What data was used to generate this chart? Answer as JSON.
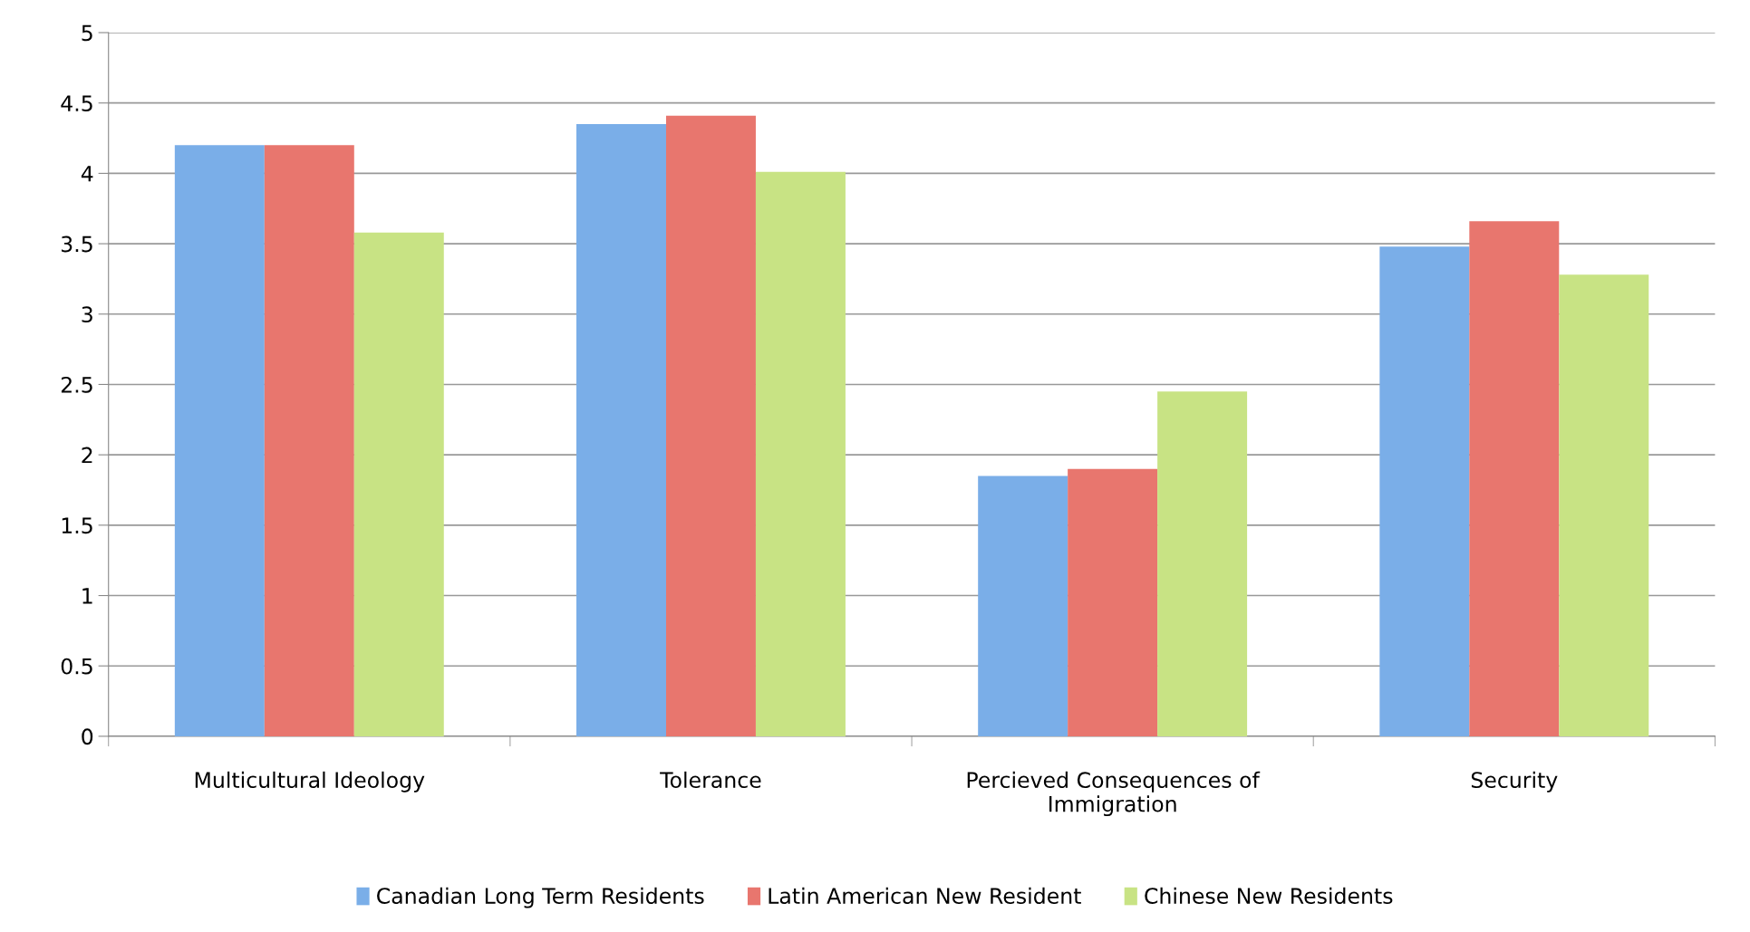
{
  "chart_data": {
    "type": "bar",
    "categories": [
      "Multicultural Ideology",
      "Tolerance",
      "Percieved Consequences of Immigration",
      "Security"
    ],
    "series": [
      {
        "name": "Canadian Long Term Residents",
        "color": "#7aaee8",
        "values": [
          4.2,
          4.35,
          1.85,
          3.48
        ]
      },
      {
        "name": "Latin American New Resident",
        "color": "#e8766e",
        "values": [
          4.2,
          4.41,
          1.9,
          3.66
        ]
      },
      {
        "name": "Chinese New Residents",
        "color": "#c8e384",
        "values": [
          3.58,
          4.01,
          2.45,
          3.28
        ]
      }
    ],
    "ylim": [
      0,
      5
    ],
    "yticks": [
      0,
      0.5,
      1,
      1.5,
      2,
      2.5,
      3,
      3.5,
      4,
      4.5,
      5
    ],
    "grid": "y",
    "legend": "bottom"
  }
}
